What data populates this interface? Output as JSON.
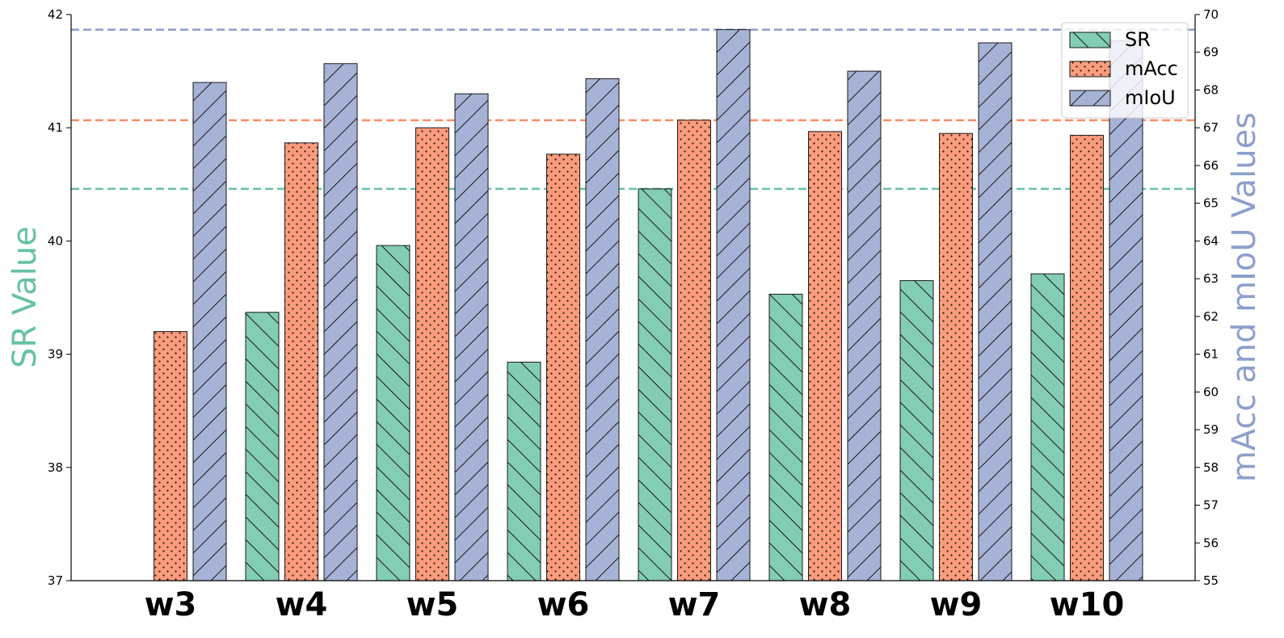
{
  "chart_data": {
    "type": "bar",
    "categories": [
      "w3",
      "w4",
      "w5",
      "w6",
      "w7",
      "w8",
      "w9",
      "w10"
    ],
    "series": [
      {
        "name": "SR",
        "axis": "left",
        "color": "#66c2a5",
        "fill": "#82cdb3",
        "hatch": "backslash",
        "values": [
          null,
          39.37,
          39.96,
          38.93,
          40.46,
          39.53,
          39.65,
          39.71
        ]
      },
      {
        "name": "mAcc",
        "axis": "right",
        "color": "#fc8d62",
        "fill": "#fc9c7c",
        "hatch": "dots",
        "values": [
          61.6,
          66.6,
          67.0,
          66.3,
          67.2,
          66.9,
          66.85,
          66.8
        ]
      },
      {
        "name": "mIoU",
        "axis": "right",
        "color": "#8da0cb",
        "fill": "#a6b3d6",
        "hatch": "slash",
        "values": [
          68.2,
          68.7,
          67.9,
          68.3,
          69.6,
          68.5,
          69.25,
          69.3
        ]
      }
    ],
    "reference_lines": [
      {
        "axis": "left",
        "value": 40.46,
        "color": "#66c2a5"
      },
      {
        "axis": "right",
        "value": 67.2,
        "color": "#fc8d62"
      },
      {
        "axis": "right",
        "value": 69.6,
        "color": "#8da0cb"
      }
    ],
    "ylabel_left": "SR Value",
    "ylabel_right": "mAcc and mIoU Values",
    "ylim_left": [
      37,
      42
    ],
    "ylim_right": [
      55,
      70
    ],
    "yticks_left": [
      37,
      38,
      39,
      40,
      41,
      42
    ],
    "yticks_right": [
      55,
      56,
      57,
      58,
      59,
      60,
      61,
      62,
      63,
      64,
      65,
      66,
      67,
      68,
      69,
      70
    ],
    "legend_position": "top-right",
    "grid": false
  }
}
